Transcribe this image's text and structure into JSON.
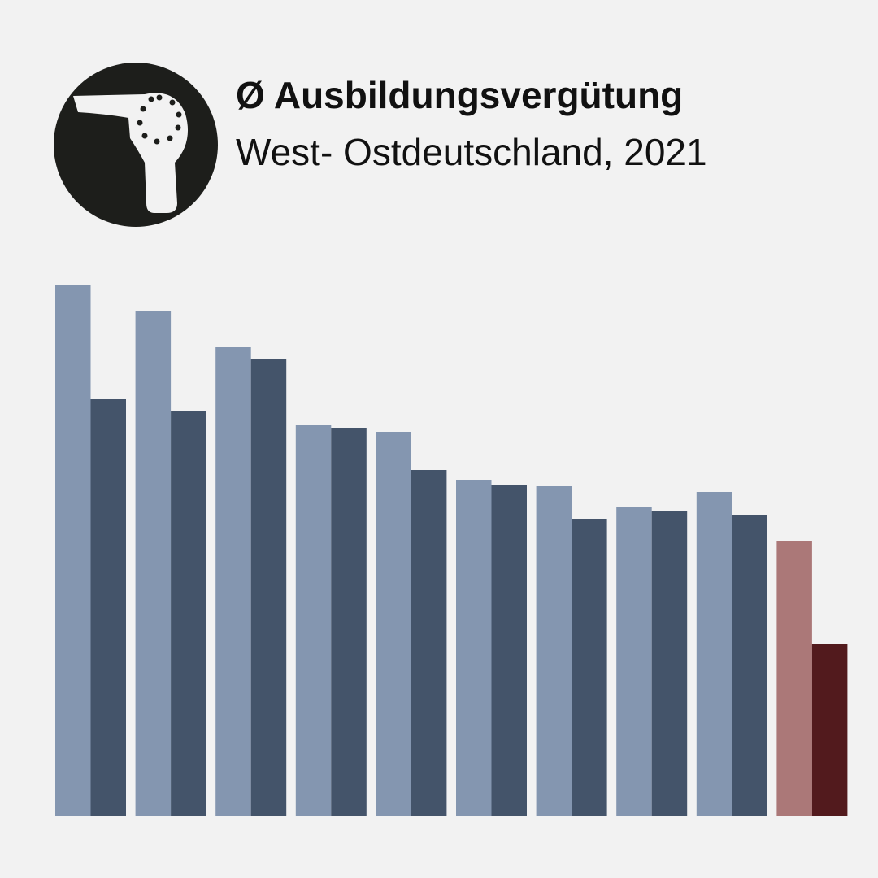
{
  "chart_data": {
    "type": "bar",
    "title": "Ø Ausbildungsvergütung",
    "subtitle": "West- Ostdeutschland, 2021",
    "categories": [
      null,
      null,
      null,
      null,
      null,
      null,
      null,
      null,
      null,
      null
    ],
    "series": [
      {
        "color": "#8496b0",
        "colors": [
          "#8496b0",
          "#8496b0",
          "#8496b0",
          "#8496b0",
          "#8496b0",
          "#8496b0",
          "#8496b0",
          "#8496b0",
          "#8496b0",
          "#ab7878"
        ],
        "values": [
          653,
          622,
          577,
          481,
          473,
          414,
          406,
          380,
          399,
          338
        ]
      },
      {
        "color": "#44546a",
        "colors": [
          "#44546a",
          "#44546a",
          "#44546a",
          "#44546a",
          "#44546a",
          "#44546a",
          "#44546a",
          "#44546a",
          "#44546a",
          "#521a1d"
        ],
        "values": [
          513,
          499,
          563,
          477,
          426,
          408,
          365,
          375,
          371,
          212
        ]
      }
    ],
    "ylim": [
      0,
      653
    ]
  }
}
